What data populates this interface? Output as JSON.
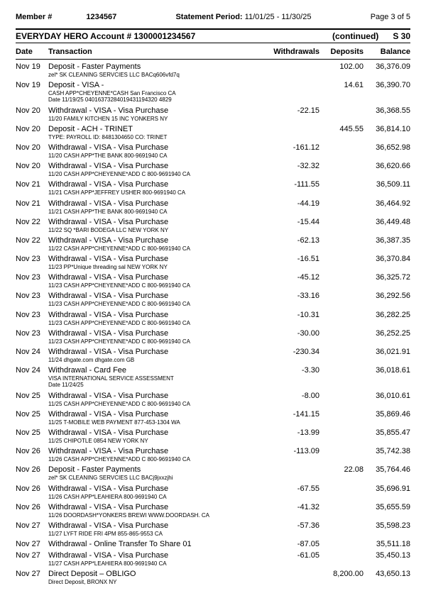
{
  "header": {
    "member_label": "Member #",
    "member_value": "1234567",
    "period_label": "Statement Period:",
    "period_value": "11/01/25 - 11/30/25",
    "page": "Page 3 of 5"
  },
  "account": {
    "title": "EVERYDAY HERO Account # 1300001234567",
    "continued": "(continued)",
    "code": "S 30"
  },
  "columns": {
    "date": "Date",
    "tx": "Transaction",
    "wd": "Withdrawals",
    "dep": "Deposits",
    "bal": "Balance"
  },
  "rows": [
    {
      "date": "Nov 19",
      "title": "Deposit - Faster Payments",
      "memo": "zel* SK CLEANING SERVCIES LLC BACq606vfd7q",
      "wd": "",
      "dep": "102.00",
      "bal": "36,376.09"
    },
    {
      "date": "Nov 19",
      "title": "Deposit - VISA -",
      "memo": "CASH APP*CHEYENNE*CASH San Francisco CA\nDate 11/19/25 04016373284019431194320 4829",
      "wd": "",
      "dep": "14.61",
      "bal": "36,390.70"
    },
    {
      "date": "Nov 20",
      "title": "Withdrawal - VISA - Visa Purchase",
      "memo": "11/20 FAMILY KITCHEN 15 INC YONKERS NY",
      "wd": "-22.15",
      "dep": "",
      "bal": "36,368.55"
    },
    {
      "date": "Nov 20",
      "title": "Deposit - ACH - TRINET",
      "memo": "TYPE: PAYROLL ID: 8481304650 CO: TRINET",
      "wd": "",
      "dep": "445.55",
      "bal": "36,814.10"
    },
    {
      "date": "Nov 20",
      "title": "Withdrawal - VISA - Visa Purchase",
      "memo": "11/20 CASH APP*THE BANK 800-9691940 CA",
      "wd": "-161.12",
      "dep": "",
      "bal": "36,652.98"
    },
    {
      "date": "Nov 20",
      "title": "Withdrawal - VISA - Visa Purchase",
      "memo": "11/20 CASH APP*CHEYENNE*ADD C 800-9691940 CA",
      "wd": "-32.32",
      "dep": "",
      "bal": "36,620.66"
    },
    {
      "date": "Nov 21",
      "title": "Withdrawal - VISA - Visa Purchase",
      "memo": "11/21 CASH APP*JEFFREY USHER 800-9691940 CA",
      "wd": "-111.55",
      "dep": "",
      "bal": "36,509.11"
    },
    {
      "date": "Nov 21",
      "title": "Withdrawal - VISA - Visa Purchase",
      "memo": "11/21 CASH APP*THE BANK 800-9691940 CA",
      "wd": "-44.19",
      "dep": "",
      "bal": "36,464.92"
    },
    {
      "date": "Nov 22",
      "title": "Withdrawal - VISA - Visa Purchase",
      "memo": "11/22 SQ *BARI BODEGA LLC NEW YORK NY",
      "wd": "-15.44",
      "dep": "",
      "bal": "36,449.48"
    },
    {
      "date": "Nov 22",
      "title": "Withdrawal - VISA - Visa Purchase",
      "memo": "11/22 CASH APP*CHEYENNE*ADD C 800-9691940 CA",
      "wd": "-62.13",
      "dep": "",
      "bal": "36,387.35"
    },
    {
      "date": "Nov 23",
      "title": "Withdrawal - VISA - Visa Purchase",
      "memo": "11/23 PP*Unique threading sal NEW YORK NY",
      "wd": "-16.51",
      "dep": "",
      "bal": "36,370.84"
    },
    {
      "date": "Nov 23",
      "title": "Withdrawal - VISA - Visa Purchase",
      "memo": "11/23 CASH APP*CHEYENNE*ADD C 800-9691940 CA",
      "wd": "-45.12",
      "dep": "",
      "bal": "36,325.72"
    },
    {
      "date": "Nov 23",
      "title": "Withdrawal - VISA - Visa Purchase",
      "memo": "11/23 CASH APP*CHEYENNE*ADD C 800-9691940 CA",
      "wd": "-33.16",
      "dep": "",
      "bal": "36,292.56"
    },
    {
      "date": "Nov 23",
      "title": "Withdrawal - VISA - Visa Purchase",
      "memo": "11/23 CASH APP*CHEYENNE*ADD C 800-9691940 CA",
      "wd": "-10.31",
      "dep": "",
      "bal": "36,282.25"
    },
    {
      "date": "Nov 23",
      "title": "Withdrawal - VISA - Visa Purchase",
      "memo": "11/23 CASH APP*CHEYENNE*ADD C 800-9691940 CA",
      "wd": "-30.00",
      "dep": "",
      "bal": "36,252.25"
    },
    {
      "date": "Nov 24",
      "title": "Withdrawal - VISA - Visa Purchase",
      "memo": "11/24 dhgate.com dhgate.com GB",
      "wd": "-230.34",
      "dep": "",
      "bal": "36,021.91"
    },
    {
      "date": "Nov 24",
      "title": "Withdrawal - Card Fee",
      "memo": "VISA INTERNATIONAL SERVICE ASSESSMENT\nDate 11/24/25",
      "wd": "-3.30",
      "dep": "",
      "bal": "36,018.61"
    },
    {
      "date": "Nov 25",
      "title": "Withdrawal - VISA - Visa Purchase",
      "memo": "11/25 CASH APP*CHEYENNE*ADD C 800-9691940 CA",
      "wd": "-8.00",
      "dep": "",
      "bal": "36,010.61"
    },
    {
      "date": "Nov 25",
      "title": "Withdrawal - VISA - Visa Purchase",
      "memo": "11/25 T-MOBILE WEB PAYMENT 877-453-1304 WA",
      "wd": "-141.15",
      "dep": "",
      "bal": "35,869.46"
    },
    {
      "date": "Nov 25",
      "title": "Withdrawal - VISA - Visa Purchase",
      "memo": "11/25 CHIPOTLE 0854 NEW YORK NY",
      "wd": "-13.99",
      "dep": "",
      "bal": "35,855.47"
    },
    {
      "date": "Nov 26",
      "title": "Withdrawal - VISA - Visa Purchase",
      "memo": "11/26 CASH APP*CHEYENNE*ADD C 800-9691940 CA",
      "wd": "-113.09",
      "dep": "",
      "bal": "35,742.38"
    },
    {
      "date": "Nov 26",
      "title": "Deposit - Faster Payments",
      "memo": "zel* SK CLEANING SERVCIES LLC BACj9jxxzjhi",
      "wd": "",
      "dep": "22.08",
      "bal": "35,764.46"
    },
    {
      "date": "Nov 26",
      "title": "Withdrawal - VISA - Visa Purchase",
      "memo": "11/26 CASH APP*LEAHIERA 800-9691940 CA",
      "wd": "-67.55",
      "dep": "",
      "bal": "35,696.91"
    },
    {
      "date": "Nov 26",
      "title": "Withdrawal - VISA - Visa Purchase",
      "memo": "11/26 DOORDASH*YONKERS BREWI WWW.DOORDASH. CA",
      "wd": "-41.32",
      "dep": "",
      "bal": "35,655.59"
    },
    {
      "date": "Nov 27",
      "title": "Withdrawal - VISA - Visa Purchase",
      "memo": "11/27 LYFT RIDE FRI 4PM 855-865-9553 CA",
      "wd": "-57.36",
      "dep": "",
      "bal": "35,598.23"
    },
    {
      "date": "Nov 27",
      "title": "Withdrawal - Online Transfer To Share 01",
      "memo": "",
      "wd": "-87.05",
      "dep": "",
      "bal": "35,511.18"
    },
    {
      "date": "Nov 27",
      "title": "Withdrawal - VISA - Visa Purchase",
      "memo": "11/27 CASH APP*LEAHIERA 800-9691940 CA",
      "wd": "-61.05",
      "dep": "",
      "bal": "35,450.13"
    },
    {
      "date": "Nov 27",
      "title": "Direct Deposit – OBLIGO",
      "memo": "Direct Deposit, BRONX NY",
      "wd": "",
      "dep": "8,200.00",
      "bal": "43,650.13"
    }
  ]
}
